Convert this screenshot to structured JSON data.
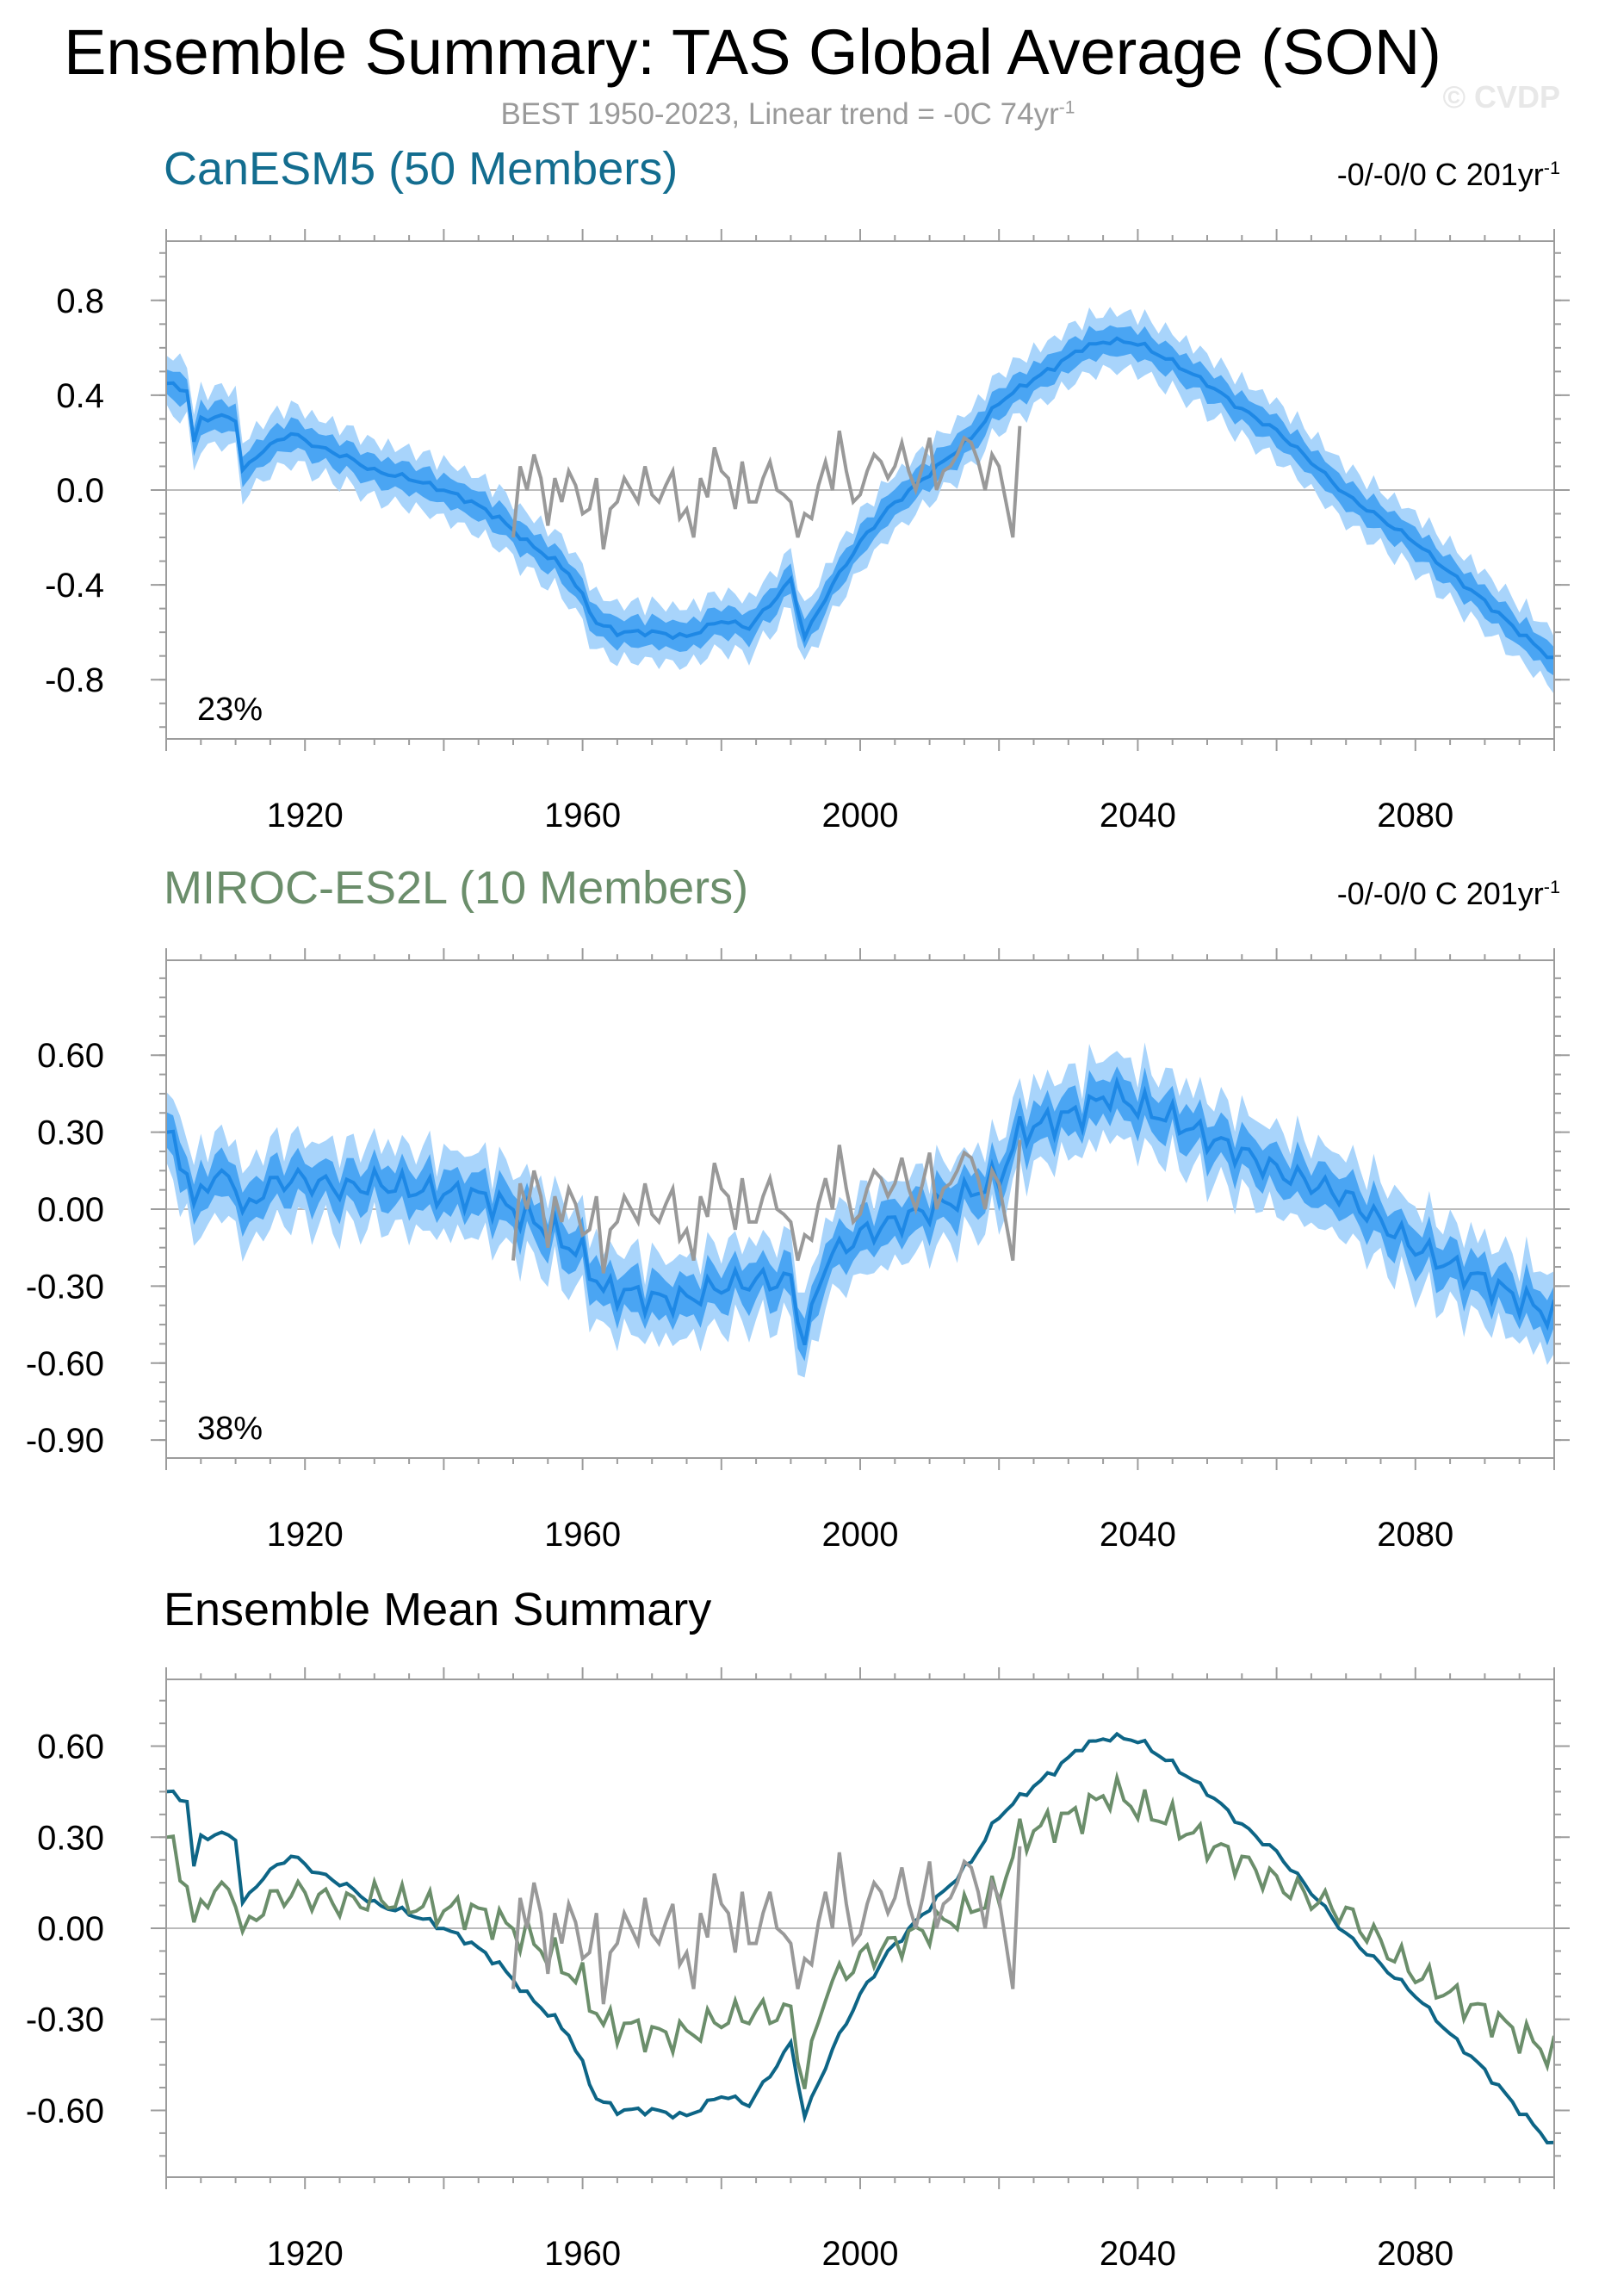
{
  "header": {
    "title": "Ensemble Summary: TAS Global Average (SON)",
    "subtitle_main": "BEST 1950-2023, Linear trend = -0C 74yr",
    "subtitle_sup": "-1",
    "credit": "© CVDP"
  },
  "colors": {
    "canesm_line": "#1e88e5",
    "canesm_band_outer": "#a8d4fb",
    "canesm_band_inner": "#4aa5f3",
    "obs": "#999999",
    "summary_canesm": "#0d6586",
    "summary_miroc": "#6b8e6b",
    "zero_line": "#bbbbbb"
  },
  "chart_data": [
    {
      "type": "line",
      "panel": "canesm5",
      "title": "CanESM5 (50 Members)",
      "trend_main": "-0/-0/0 C 201yr",
      "trend_sup": "-1",
      "percent_label": "23%",
      "xlim": [
        1900,
        2100
      ],
      "ylim": [
        -1.05,
        1.05
      ],
      "xticks": [
        1920,
        1960,
        2000,
        2040,
        2080
      ],
      "yticks": [
        0.8,
        0.4,
        0.0,
        -0.4,
        -0.8
      ],
      "ytick_labels": [
        "0.8",
        "0.4",
        "0.0",
        "-0.4",
        "-0.8"
      ],
      "ensemble_mean_knots": [
        [
          1900,
          0.45
        ],
        [
          1903,
          0.42
        ],
        [
          1904,
          0.2
        ],
        [
          1905,
          0.3
        ],
        [
          1908,
          0.31
        ],
        [
          1910,
          0.3
        ],
        [
          1911,
          0.08
        ],
        [
          1914,
          0.17
        ],
        [
          1918,
          0.24
        ],
        [
          1922,
          0.18
        ],
        [
          1926,
          0.14
        ],
        [
          1930,
          0.08
        ],
        [
          1935,
          0.05
        ],
        [
          1940,
          0.0
        ],
        [
          1944,
          -0.05
        ],
        [
          1948,
          -0.12
        ],
        [
          1952,
          -0.22
        ],
        [
          1956,
          -0.3
        ],
        [
          1958,
          -0.35
        ],
        [
          1960,
          -0.45
        ],
        [
          1962,
          -0.56
        ],
        [
          1965,
          -0.6
        ],
        [
          1970,
          -0.6
        ],
        [
          1975,
          -0.62
        ],
        [
          1980,
          -0.55
        ],
        [
          1984,
          -0.58
        ],
        [
          1988,
          -0.45
        ],
        [
          1990,
          -0.38
        ],
        [
          1992,
          -0.62
        ],
        [
          1996,
          -0.4
        ],
        [
          2000,
          -0.22
        ],
        [
          2004,
          -0.08
        ],
        [
          2008,
          0.02
        ],
        [
          2012,
          0.12
        ],
        [
          2016,
          0.22
        ],
        [
          2020,
          0.37
        ],
        [
          2024,
          0.45
        ],
        [
          2028,
          0.52
        ],
        [
          2032,
          0.6
        ],
        [
          2036,
          0.63
        ],
        [
          2040,
          0.62
        ],
        [
          2045,
          0.54
        ],
        [
          2050,
          0.45
        ],
        [
          2055,
          0.34
        ],
        [
          2060,
          0.25
        ],
        [
          2065,
          0.12
        ],
        [
          2070,
          -0.02
        ],
        [
          2075,
          -0.12
        ],
        [
          2080,
          -0.22
        ],
        [
          2085,
          -0.35
        ],
        [
          2090,
          -0.47
        ],
        [
          2095,
          -0.6
        ],
        [
          2100,
          -0.72
        ]
      ],
      "band_inner_halfwidth": 0.06,
      "band_outer_halfwidth": 0.12
    },
    {
      "type": "line",
      "panel": "miroc",
      "title": "MIROC-ES2L (10 Members)",
      "trend_main": "-0/-0/0 C 201yr",
      "trend_sup": "-1",
      "percent_label": "38%",
      "xlim": [
        1900,
        2100
      ],
      "ylim": [
        -0.97,
        0.97
      ],
      "xticks": [
        1920,
        1960,
        2000,
        2040,
        2080
      ],
      "yticks": [
        0.6,
        0.3,
        0.0,
        -0.3,
        -0.6,
        -0.9
      ],
      "ytick_labels": [
        "0.60",
        "0.30",
        "0.00",
        "-0.30",
        "-0.60",
        "-0.90"
      ],
      "ensemble_mean_knots": [
        [
          1900,
          0.3
        ],
        [
          1903,
          0.15
        ],
        [
          1904,
          0.0
        ],
        [
          1906,
          0.12
        ],
        [
          1910,
          0.12
        ],
        [
          1911,
          -0.03
        ],
        [
          1914,
          0.08
        ],
        [
          1918,
          0.12
        ],
        [
          1922,
          0.1
        ],
        [
          1926,
          0.08
        ],
        [
          1930,
          0.1
        ],
        [
          1935,
          0.08
        ],
        [
          1940,
          0.06
        ],
        [
          1944,
          0.06
        ],
        [
          1948,
          0.02
        ],
        [
          1952,
          -0.03
        ],
        [
          1956,
          -0.1
        ],
        [
          1960,
          -0.18
        ],
        [
          1963,
          -0.32
        ],
        [
          1966,
          -0.32
        ],
        [
          1970,
          -0.35
        ],
        [
          1975,
          -0.35
        ],
        [
          1980,
          -0.3
        ],
        [
          1985,
          -0.28
        ],
        [
          1990,
          -0.28
        ],
        [
          1992,
          -0.52
        ],
        [
          1995,
          -0.2
        ],
        [
          2000,
          -0.1
        ],
        [
          2005,
          -0.05
        ],
        [
          2010,
          0.0
        ],
        [
          2015,
          0.05
        ],
        [
          2020,
          0.12
        ],
        [
          2023,
          0.3
        ],
        [
          2028,
          0.35
        ],
        [
          2032,
          0.38
        ],
        [
          2036,
          0.45
        ],
        [
          2040,
          0.4
        ],
        [
          2045,
          0.35
        ],
        [
          2050,
          0.28
        ],
        [
          2055,
          0.22
        ],
        [
          2060,
          0.15
        ],
        [
          2065,
          0.1
        ],
        [
          2070,
          0.05
        ],
        [
          2075,
          -0.05
        ],
        [
          2080,
          -0.15
        ],
        [
          2085,
          -0.22
        ],
        [
          2090,
          -0.28
        ],
        [
          2095,
          -0.35
        ],
        [
          2100,
          -0.42
        ]
      ],
      "band_inner_halfwidth": 0.08,
      "band_outer_halfwidth": 0.16
    },
    {
      "type": "line",
      "panel": "summary",
      "title": "Ensemble Mean Summary",
      "xlim": [
        1900,
        2100
      ],
      "ylim": [
        -0.82,
        0.82
      ],
      "xticks": [
        1920,
        1960,
        2000,
        2040,
        2080
      ],
      "yticks": [
        0.6,
        0.3,
        0.0,
        -0.3,
        -0.6
      ],
      "ytick_labels": [
        "0.60",
        "0.30",
        "0.00",
        "-0.30",
        "-0.60"
      ],
      "series": [
        {
          "name": "CanESM5",
          "color_key": "summary_canesm"
        },
        {
          "name": "MIROC-ES2L",
          "color_key": "summary_miroc"
        },
        {
          "name": "BEST",
          "color_key": "obs"
        }
      ]
    }
  ],
  "observations_best": {
    "name": "BEST",
    "years": [
      1950,
      1951,
      1952,
      1953,
      1954,
      1955,
      1956,
      1957,
      1958,
      1959,
      1960,
      1961,
      1962,
      1963,
      1964,
      1965,
      1966,
      1967,
      1968,
      1969,
      1970,
      1971,
      1972,
      1973,
      1974,
      1975,
      1976,
      1977,
      1978,
      1979,
      1980,
      1981,
      1982,
      1983,
      1984,
      1985,
      1986,
      1987,
      1988,
      1989,
      1990,
      1991,
      1992,
      1993,
      1994,
      1995,
      1996,
      1997,
      1998,
      1999,
      2000,
      2001,
      2002,
      2003,
      2004,
      2005,
      2006,
      2007,
      2008,
      2009,
      2010,
      2011,
      2012,
      2013,
      2014,
      2015,
      2016,
      2017,
      2018,
      2019,
      2020,
      2021,
      2022,
      2023
    ],
    "values": [
      -0.2,
      0.1,
      0.0,
      0.15,
      0.05,
      -0.15,
      0.05,
      -0.05,
      0.08,
      0.02,
      -0.1,
      -0.08,
      0.05,
      -0.25,
      -0.08,
      -0.05,
      0.05,
      0.0,
      -0.05,
      0.1,
      -0.02,
      -0.05,
      0.02,
      0.08,
      -0.12,
      -0.08,
      -0.2,
      0.05,
      -0.03,
      0.18,
      0.08,
      0.05,
      -0.08,
      0.12,
      -0.05,
      -0.05,
      0.05,
      0.12,
      0.0,
      -0.02,
      -0.05,
      -0.2,
      -0.1,
      -0.12,
      0.02,
      0.12,
      0.0,
      0.25,
      0.08,
      -0.05,
      -0.02,
      0.08,
      0.15,
      0.12,
      0.05,
      0.1,
      0.2,
      0.08,
      0.0,
      0.1,
      0.22,
      0.0,
      0.08,
      0.1,
      0.15,
      0.22,
      0.2,
      0.12,
      0.0,
      0.15,
      0.1,
      -0.05,
      -0.2,
      0.27
    ]
  }
}
